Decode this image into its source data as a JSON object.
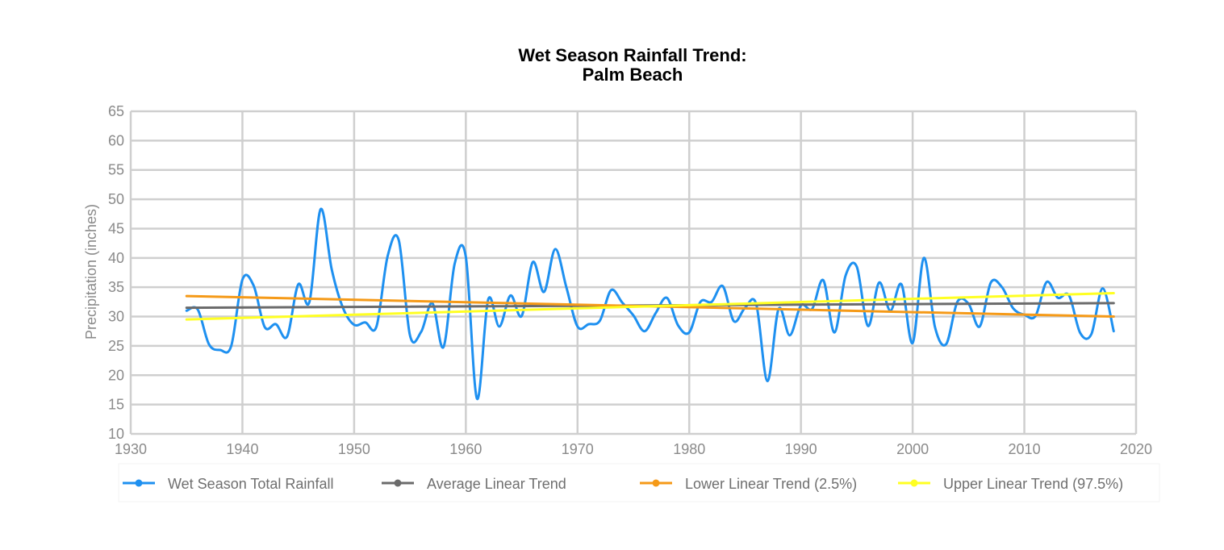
{
  "chart_data": {
    "type": "line",
    "title": "Wet Season Rainfall Trend:",
    "subtitle": "Palm Beach",
    "xlabel": "",
    "ylabel": "Precipitation (inches)",
    "xlim": [
      1930,
      2020
    ],
    "ylim": [
      10,
      65
    ],
    "xticks": [
      1930,
      1940,
      1950,
      1960,
      1970,
      1980,
      1990,
      2000,
      2010,
      2020
    ],
    "yticks": [
      10,
      15,
      20,
      25,
      30,
      35,
      40,
      45,
      50,
      55,
      60,
      65
    ],
    "grid": true,
    "legend_position": "bottom",
    "series": [
      {
        "name": "Wet Season Total Rainfall",
        "color": "#1e90f0",
        "x": [
          1935,
          1936,
          1937,
          1938,
          1939,
          1940,
          1941,
          1942,
          1943,
          1944,
          1945,
          1946,
          1947,
          1948,
          1949,
          1950,
          1951,
          1952,
          1953,
          1954,
          1955,
          1956,
          1957,
          1958,
          1959,
          1960,
          1961,
          1962,
          1963,
          1964,
          1965,
          1966,
          1967,
          1968,
          1969,
          1970,
          1971,
          1972,
          1973,
          1974,
          1975,
          1976,
          1977,
          1978,
          1979,
          1980,
          1981,
          1982,
          1983,
          1984,
          1985,
          1986,
          1987,
          1988,
          1989,
          1990,
          1991,
          1992,
          1993,
          1994,
          1995,
          1996,
          1997,
          1998,
          1999,
          2000,
          2001,
          2002,
          2003,
          2004,
          2005,
          2006,
          2007,
          2008,
          2009,
          2010,
          2011,
          2012,
          2013,
          2014,
          2015,
          2016,
          2017,
          2018
        ],
        "y": [
          31,
          31.2,
          25.3,
          24.3,
          25,
          36.3,
          35.3,
          28.2,
          28.7,
          26.6,
          35.5,
          32.5,
          48.3,
          38,
          31.5,
          28.6,
          29,
          28.3,
          40.3,
          43,
          26.8,
          27.4,
          32.3,
          24.8,
          39,
          40.2,
          16,
          32.9,
          28.3,
          33.6,
          30.1,
          39.3,
          34.2,
          41.5,
          35,
          28.3,
          28.7,
          29.3,
          34.5,
          32.4,
          30.2,
          27.5,
          30.6,
          33.2,
          28.5,
          27.3,
          32.5,
          32.5,
          35.2,
          29.2,
          31.5,
          32.1,
          19,
          31.3,
          26.8,
          31.9,
          31.3,
          36.2,
          27.3,
          37,
          38.5,
          28.4,
          35.8,
          31,
          35.5,
          25.5,
          40,
          28.2,
          25.3,
          32.5,
          32.2,
          28.3,
          35.8,
          35,
          31.4,
          30.3,
          30.1,
          35.9,
          33.2,
          33.6,
          27.2,
          27,
          34.8,
          27.5
        ]
      },
      {
        "name": "Average Linear Trend",
        "color": "#6b6b6b",
        "x": [
          1935,
          2018
        ],
        "y": [
          31.5,
          32.3
        ]
      },
      {
        "name": "Lower Linear Trend (2.5%)",
        "color": "#f59a18",
        "x": [
          1935,
          2018
        ],
        "y": [
          33.5,
          30.0
        ]
      },
      {
        "name": "Upper Linear Trend (97.5%)",
        "color": "#ffff22",
        "x": [
          1935,
          2018
        ],
        "y": [
          29.5,
          34.0
        ]
      }
    ]
  }
}
